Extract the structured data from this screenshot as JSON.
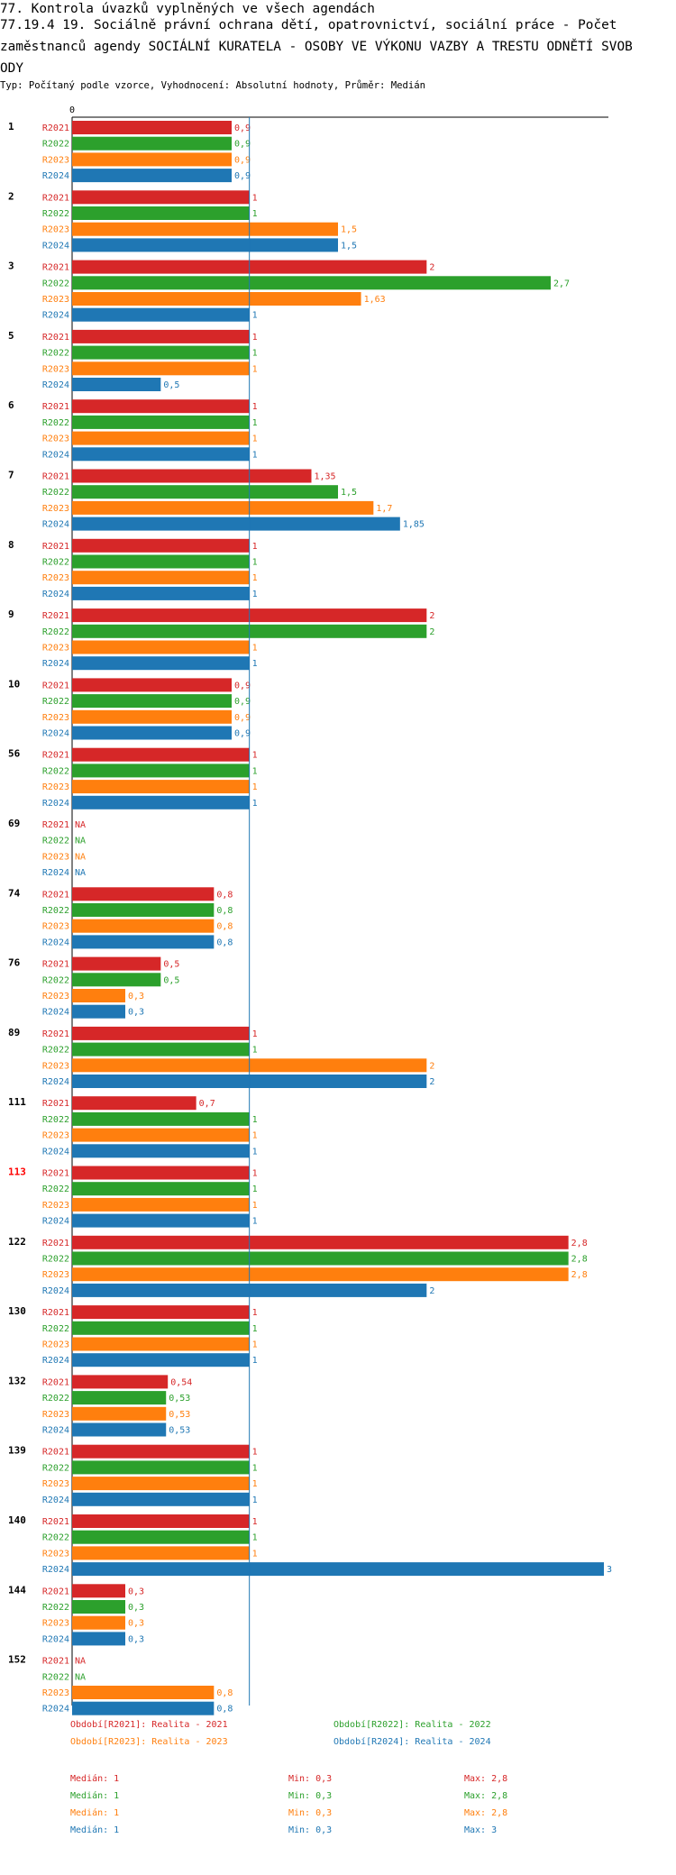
{
  "header": {
    "line1": "77. Kontrola úvazků vyplněných ve všech agendách",
    "line2": "77.19.4 19.  Sociálně právní ochrana dětí, opatrovnictví, sociální práce - Počet",
    "line3": "zaměstnanců agendy SOCIÁLNÍ KURATELA - OSOBY VE VÝKONU VAZBY A TRESTU ODNĚTÍ SVOB",
    "line4": "ODY",
    "subtitle": "Typ: Počítaný podle vzorce, Vyhodnocení: Absolutní hodnoty, Průměr: Medián"
  },
  "colors": {
    "R2021": "#d62728",
    "R2022": "#2ca02c",
    "R2023": "#ff7f0e",
    "R2024": "#1f77b4",
    "highlight": "#ff0000",
    "axis": "#000000"
  },
  "chart_data": {
    "type": "bar",
    "orientation": "horizontal",
    "axis_zero_label": "0",
    "na_label": "NA",
    "xlim": [
      0,
      3
    ],
    "median_line": 1,
    "series_names": [
      "R2021",
      "R2022",
      "R2023",
      "R2024"
    ],
    "groups": [
      {
        "label": "1",
        "values": [
          0.9,
          0.9,
          0.9,
          0.9
        ],
        "labels": [
          "0,9",
          "0,9",
          "0,9",
          "0,9"
        ]
      },
      {
        "label": "2",
        "values": [
          1,
          1,
          1.5,
          1.5
        ],
        "labels": [
          "1",
          "1",
          "1,5",
          "1,5"
        ]
      },
      {
        "label": "3",
        "values": [
          2,
          2.7,
          1.63,
          1
        ],
        "labels": [
          "2",
          "2,7",
          "1,63",
          "1"
        ]
      },
      {
        "label": "5",
        "values": [
          1,
          1,
          1,
          0.5
        ],
        "labels": [
          "1",
          "1",
          "1",
          "0,5"
        ]
      },
      {
        "label": "6",
        "values": [
          1,
          1,
          1,
          1
        ],
        "labels": [
          "1",
          "1",
          "1",
          "1"
        ]
      },
      {
        "label": "7",
        "values": [
          1.35,
          1.5,
          1.7,
          1.85
        ],
        "labels": [
          "1,35",
          "1,5",
          "1,7",
          "1,85"
        ]
      },
      {
        "label": "8",
        "values": [
          1,
          1,
          1,
          1
        ],
        "labels": [
          "1",
          "1",
          "1",
          "1"
        ]
      },
      {
        "label": "9",
        "values": [
          2,
          2,
          1,
          1
        ],
        "labels": [
          "2",
          "2",
          "1",
          "1"
        ]
      },
      {
        "label": "10",
        "values": [
          0.9,
          0.9,
          0.9,
          0.9
        ],
        "labels": [
          "0,9",
          "0,9",
          "0,9",
          "0,9"
        ]
      },
      {
        "label": "56",
        "values": [
          1,
          1,
          1,
          1
        ],
        "labels": [
          "1",
          "1",
          "1",
          "1"
        ]
      },
      {
        "label": "69",
        "values": [
          null,
          null,
          null,
          null
        ],
        "labels": [
          "NA",
          "NA",
          "NA",
          "NA"
        ]
      },
      {
        "label": "74",
        "values": [
          0.8,
          0.8,
          0.8,
          0.8
        ],
        "labels": [
          "0,8",
          "0,8",
          "0,8",
          "0,8"
        ]
      },
      {
        "label": "76",
        "values": [
          0.5,
          0.5,
          0.3,
          0.3
        ],
        "labels": [
          "0,5",
          "0,5",
          "0,3",
          "0,3"
        ]
      },
      {
        "label": "89",
        "values": [
          1,
          1,
          2,
          2
        ],
        "labels": [
          "1",
          "1",
          "2",
          "2"
        ]
      },
      {
        "label": "111",
        "values": [
          0.7,
          1,
          1,
          1
        ],
        "labels": [
          "0,7",
          "1",
          "1",
          "1"
        ]
      },
      {
        "label": "113",
        "highlight": true,
        "values": [
          1,
          1,
          1,
          1
        ],
        "labels": [
          "1",
          "1",
          "1",
          "1"
        ]
      },
      {
        "label": "122",
        "values": [
          2.8,
          2.8,
          2.8,
          2
        ],
        "labels": [
          "2,8",
          "2,8",
          "2,8",
          "2"
        ]
      },
      {
        "label": "130",
        "values": [
          1,
          1,
          1,
          1
        ],
        "labels": [
          "1",
          "1",
          "1",
          "1"
        ]
      },
      {
        "label": "132",
        "values": [
          0.54,
          0.53,
          0.53,
          0.53
        ],
        "labels": [
          "0,54",
          "0,53",
          "0,53",
          "0,53"
        ]
      },
      {
        "label": "139",
        "values": [
          1,
          1,
          1,
          1
        ],
        "labels": [
          "1",
          "1",
          "1",
          "1"
        ]
      },
      {
        "label": "140",
        "values": [
          1,
          1,
          1,
          3
        ],
        "labels": [
          "1",
          "1",
          "1",
          "3"
        ]
      },
      {
        "label": "144",
        "values": [
          0.3,
          0.3,
          0.3,
          0.3
        ],
        "labels": [
          "0,3",
          "0,3",
          "0,3",
          "0,3"
        ]
      },
      {
        "label": "152",
        "values": [
          null,
          null,
          0.8,
          0.8
        ],
        "labels": [
          "NA",
          "NA",
          "0,8",
          "0,8"
        ]
      }
    ],
    "legend": [
      {
        "series": "R2021",
        "text": "Období[R2021]: Realita - 2021"
      },
      {
        "series": "R2022",
        "text": "Období[R2022]: Realita - 2022"
      },
      {
        "series": "R2023",
        "text": "Období[R2023]: Realita - 2023"
      },
      {
        "series": "R2024",
        "text": "Období[R2024]: Realita - 2024"
      }
    ],
    "stats": [
      {
        "series": "R2021",
        "median": "Medián: 1",
        "min": "Min: 0,3",
        "max": "Max: 2,8"
      },
      {
        "series": "R2022",
        "median": "Medián: 1",
        "min": "Min: 0,3",
        "max": "Max: 2,8"
      },
      {
        "series": "R2023",
        "median": "Medián: 1",
        "min": "Min: 0,3",
        "max": "Max: 2,8"
      },
      {
        "series": "R2024",
        "median": "Medián: 1",
        "min": "Min: 0,3",
        "max": "Max: 3"
      }
    ]
  }
}
